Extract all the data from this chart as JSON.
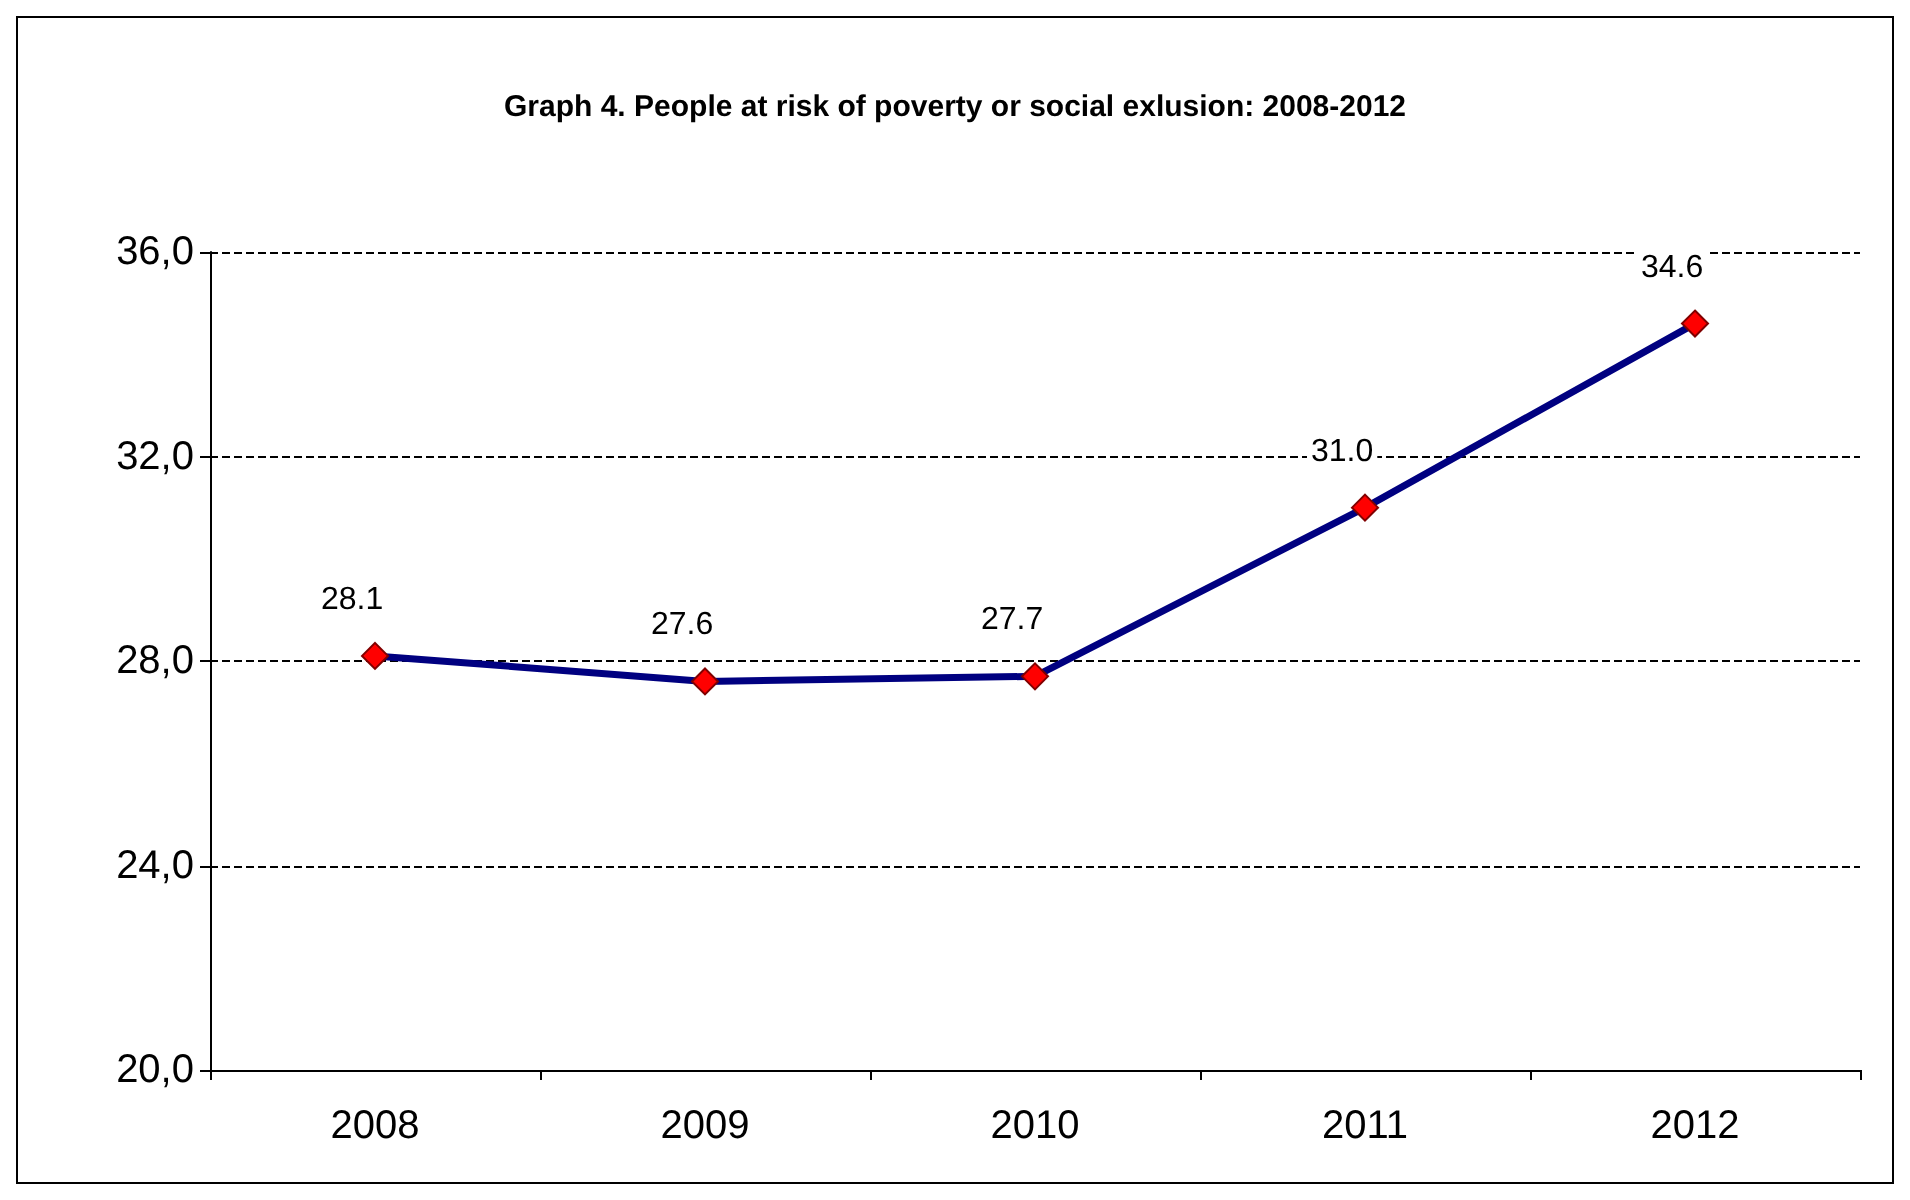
{
  "chart_data": {
    "type": "line",
    "title": "Graph 4. People at risk of poverty or social exlusion: 2008-2012",
    "categories": [
      "2008",
      "2009",
      "2010",
      "2011",
      "2012"
    ],
    "series": [
      {
        "color": "#000080",
        "colors": [
          "#ff0000",
          "#ff0000",
          "#ff0000",
          "#ff0000",
          "#ff0000"
        ],
        "values": [
          28.1,
          27.6,
          27.7,
          31.0,
          34.6
        ]
      }
    ],
    "value_labels": [
      "28.1",
      "27.6",
      "27.7",
      "31.0",
      "34.6"
    ],
    "ylim": [
      20,
      36
    ],
    "yticks": [
      {
        "value": 20,
        "label": "20,0"
      },
      {
        "value": 24,
        "label": "24,0"
      },
      {
        "value": 28,
        "label": "28,0"
      },
      {
        "value": 32,
        "label": "32,0"
      },
      {
        "value": 36,
        "label": "36,0"
      }
    ],
    "grid": "y",
    "marker": "diamond",
    "line_style": "solid"
  }
}
